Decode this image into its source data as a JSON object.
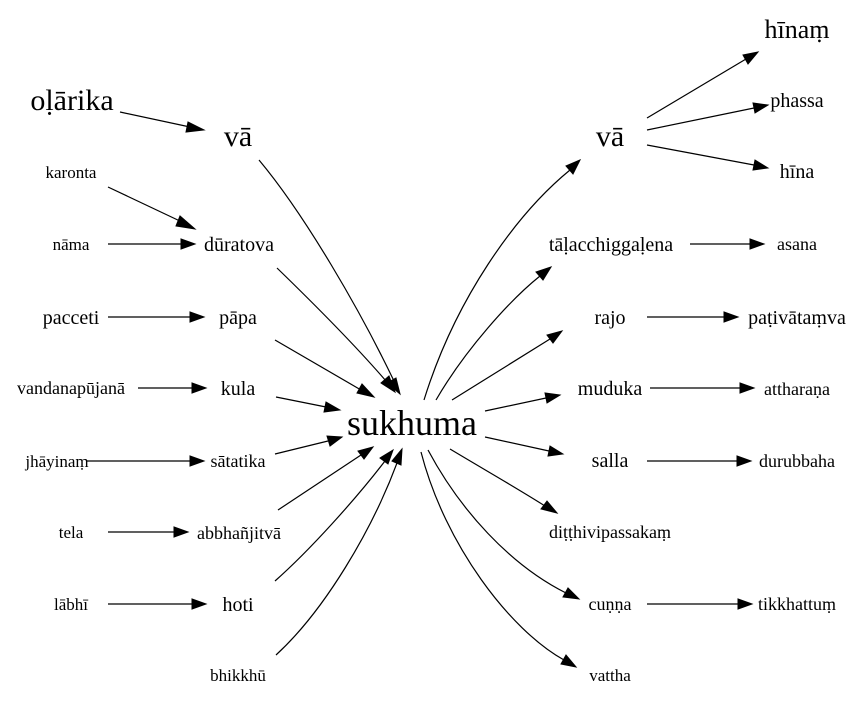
{
  "nodes": {
    "sukhuma": "sukhuma",
    "va_left": "vā",
    "olarika": "oḷārika",
    "karonta": "karonta",
    "duratova": "dūratova",
    "nama": "nāma",
    "pacceti": "pacceti",
    "papa": "pāpa",
    "vandanapujana": "vandanapūjanā",
    "kula": "kula",
    "jhayinam": "jhāyinaṃ",
    "satatika": "sātatika",
    "tela": "tela",
    "abbhanjitva": "abbhañjitvā",
    "labhi": "lābhī",
    "hoti": "hoti",
    "bhikkhu": "bhikkhū",
    "va_right": "vā",
    "hinam": "hīnaṃ",
    "phassa": "phassa",
    "hina": "hīna",
    "talacchiggalena": "tāḷacchiggaḷena",
    "asana": "asana",
    "rajo": "rajo",
    "pativatamva": "paṭivātaṃva",
    "muduka": "muduka",
    "attharana": "attharaṇa",
    "salla": "salla",
    "durubbaha": "durubbaha",
    "ditthivipassakam": "diṭṭhivipassakaṃ",
    "cunna": "cuṇṇa",
    "tikkhattum": "tikkhattuṃ",
    "vattha": "vattha"
  },
  "edges": [
    [
      "olarika",
      "va_left"
    ],
    [
      "karonta",
      "duratova"
    ],
    [
      "nama",
      "duratova"
    ],
    [
      "pacceti",
      "papa"
    ],
    [
      "vandanapujana",
      "kula"
    ],
    [
      "jhayinam",
      "satatika"
    ],
    [
      "tela",
      "abbhanjitva"
    ],
    [
      "labhi",
      "hoti"
    ],
    [
      "va_left",
      "sukhuma"
    ],
    [
      "duratova",
      "sukhuma"
    ],
    [
      "papa",
      "sukhuma"
    ],
    [
      "kula",
      "sukhuma"
    ],
    [
      "satatika",
      "sukhuma"
    ],
    [
      "abbhanjitva",
      "sukhuma"
    ],
    [
      "hoti",
      "sukhuma"
    ],
    [
      "bhikkhu",
      "sukhuma"
    ],
    [
      "sukhuma",
      "va_right"
    ],
    [
      "sukhuma",
      "talacchiggalena"
    ],
    [
      "sukhuma",
      "rajo"
    ],
    [
      "sukhuma",
      "muduka"
    ],
    [
      "sukhuma",
      "salla"
    ],
    [
      "sukhuma",
      "ditthivipassakam"
    ],
    [
      "sukhuma",
      "cunna"
    ],
    [
      "sukhuma",
      "vattha"
    ],
    [
      "va_right",
      "hinam"
    ],
    [
      "va_right",
      "phassa"
    ],
    [
      "va_right",
      "hina"
    ],
    [
      "talacchiggalena",
      "asana"
    ],
    [
      "rajo",
      "pativatamva"
    ],
    [
      "muduka",
      "attharana"
    ],
    [
      "salla",
      "durubbaha"
    ],
    [
      "cunna",
      "tikkhattum"
    ]
  ]
}
